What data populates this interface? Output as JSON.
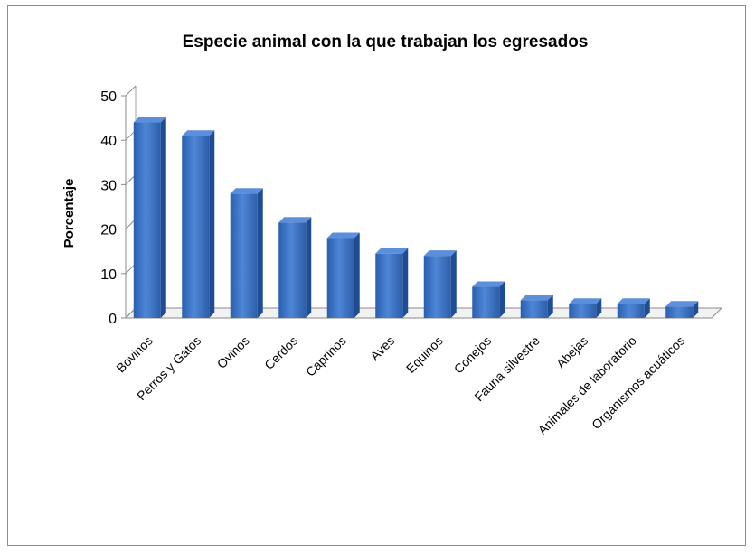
{
  "chart_data": {
    "type": "bar",
    "title": "Especie animal con la que trabajan los egresados",
    "xlabel": "",
    "ylabel": "Porcentaje",
    "ylim": [
      0,
      50
    ],
    "yticks": [
      0,
      10,
      20,
      30,
      40,
      50
    ],
    "grid": false,
    "legend": "none",
    "style": "3d-column",
    "categories": [
      "Bovinos",
      "Perros y Gatos",
      "Ovinos",
      "Cerdos",
      "Caprinos",
      "Aves",
      "Equinos",
      "Conejos",
      "Fauna silvestre",
      "Abejas",
      "Animales de laboratorio",
      "Organismos acuáticos"
    ],
    "values": [
      44,
      41,
      28,
      21.5,
      18,
      14.5,
      14,
      7,
      4,
      3.2,
      3.2,
      2.6
    ],
    "colors": {
      "bar": "#3f74c6",
      "bar_top": "#5b8fdc",
      "bar_side": "#1f4d94",
      "axis": "#808080",
      "frame": "#8c8c8c"
    }
  }
}
